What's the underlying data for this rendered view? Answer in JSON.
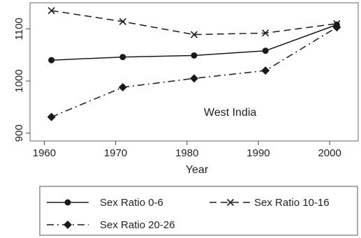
{
  "chart_data": {
    "type": "line",
    "annotation": "West India",
    "xlabel": "Year",
    "ylabel": "",
    "xlim": [
      1958,
      2004
    ],
    "ylim": [
      885,
      1150
    ],
    "xticks": [
      1960,
      1970,
      1980,
      1990,
      2000
    ],
    "yticks": [
      900,
      1000,
      1100
    ],
    "xtick_labels": [
      "1960",
      "1970",
      "1980",
      "1990",
      "2000"
    ],
    "ytick_labels": [
      "900",
      "1000",
      "1100"
    ],
    "x": [
      1961,
      1971,
      1981,
      1991,
      2001
    ],
    "grid": false,
    "legend_position": "bottom",
    "series": [
      {
        "name": "Sex Ratio 0-6",
        "values": [
          1040,
          1046,
          1049,
          1058,
          1108
        ],
        "line": "solid",
        "marker": "circle",
        "color": "#1a1a1a"
      },
      {
        "name": "Sex Ratio 10-16",
        "values": [
          1135,
          1114,
          1089,
          1092,
          1110
        ],
        "line": "dashed",
        "marker": "x",
        "color": "#1a1a1a"
      },
      {
        "name": "Sex Ratio 20-26",
        "values": [
          931,
          988,
          1005,
          1020,
          1103
        ],
        "line": "dashdot",
        "marker": "diamond",
        "color": "#1a1a1a"
      }
    ]
  }
}
